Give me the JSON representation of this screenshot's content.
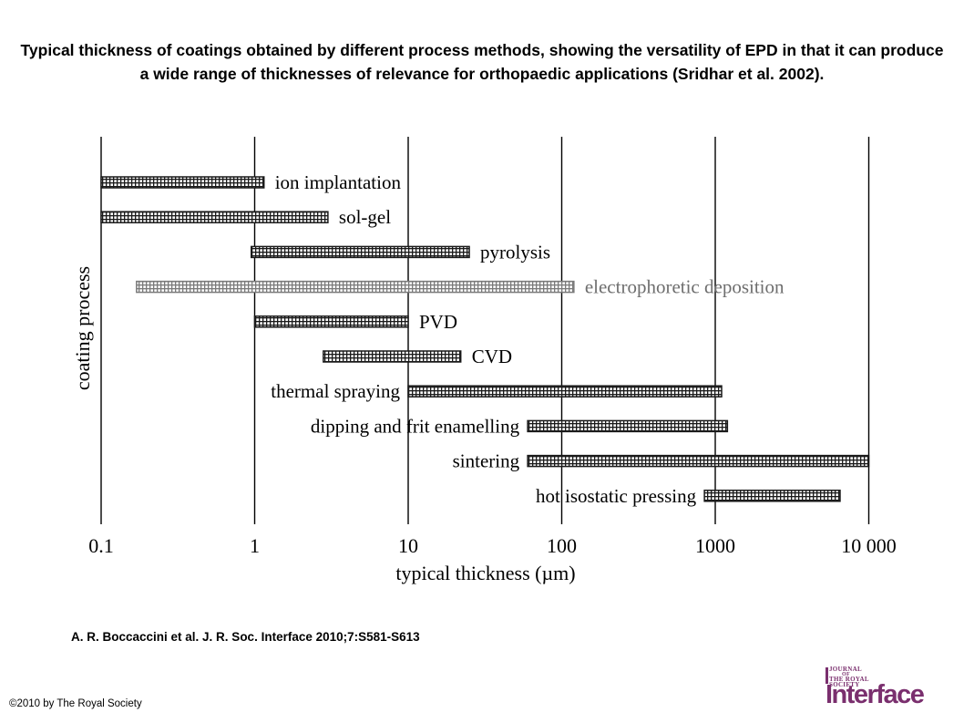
{
  "slide": {
    "title": "Typical thickness of coatings obtained by different process methods, showing the versatility of EPD in that it can produce a wide range of thicknesses of relevance for orthopaedic applications (Sridhar et al. 2002).",
    "citation": "A. R. Boccaccini et al. J. R. Soc. Interface 2010;7:S581-S613",
    "copyright": "©2010 by The Royal Society"
  },
  "logo": {
    "line1": "JOURNAL",
    "line2": "OF",
    "line3": "THE ROYAL",
    "line4": "SOCIETY",
    "word": "Interface"
  },
  "chart_data": {
    "type": "bar",
    "orientation": "horizontal-range",
    "xlabel": "typical thickness (µm)",
    "ylabel": "coating process",
    "xscale": "log",
    "xlim": [
      0.1,
      10000
    ],
    "xticks": [
      {
        "value": 0.1,
        "label": "0.1"
      },
      {
        "value": 1,
        "label": "1"
      },
      {
        "value": 10,
        "label": "10"
      },
      {
        "value": 100,
        "label": "100"
      },
      {
        "value": 1000,
        "label": "1000"
      },
      {
        "value": 10000,
        "label": "10 000"
      }
    ],
    "grid": "vertical lines at each decade",
    "series": [
      {
        "label": "ion implantation",
        "min": 0.1,
        "max": 1.15,
        "label_side": "right",
        "highlight": false
      },
      {
        "label": "sol-gel",
        "min": 0.1,
        "max": 3.0,
        "label_side": "right",
        "highlight": false
      },
      {
        "label": "pyrolysis",
        "min": 0.95,
        "max": 25,
        "label_side": "right",
        "highlight": false
      },
      {
        "label": "electrophoretic deposition",
        "min": 0.17,
        "max": 120,
        "label_side": "right",
        "highlight": true
      },
      {
        "label": "PVD",
        "min": 1.0,
        "max": 10,
        "label_side": "right",
        "highlight": false
      },
      {
        "label": "CVD",
        "min": 2.8,
        "max": 22,
        "label_side": "right",
        "highlight": false
      },
      {
        "label": "thermal spraying",
        "min": 10,
        "max": 1100,
        "label_side": "left",
        "highlight": false
      },
      {
        "label": "dipping and frit enamelling",
        "min": 60,
        "max": 1200,
        "label_side": "left",
        "highlight": false
      },
      {
        "label": "sintering",
        "min": 60,
        "max": 10000,
        "label_side": "left",
        "highlight": false
      },
      {
        "label": "hot isostatic pressing",
        "min": 850,
        "max": 6500,
        "label_side": "left",
        "highlight": false
      }
    ],
    "colors": {
      "bar_dark": "#1a1a1a",
      "bar_light": "#7a7a7a",
      "highlight_text": "#6e6e6e",
      "grid": "#000000"
    }
  }
}
